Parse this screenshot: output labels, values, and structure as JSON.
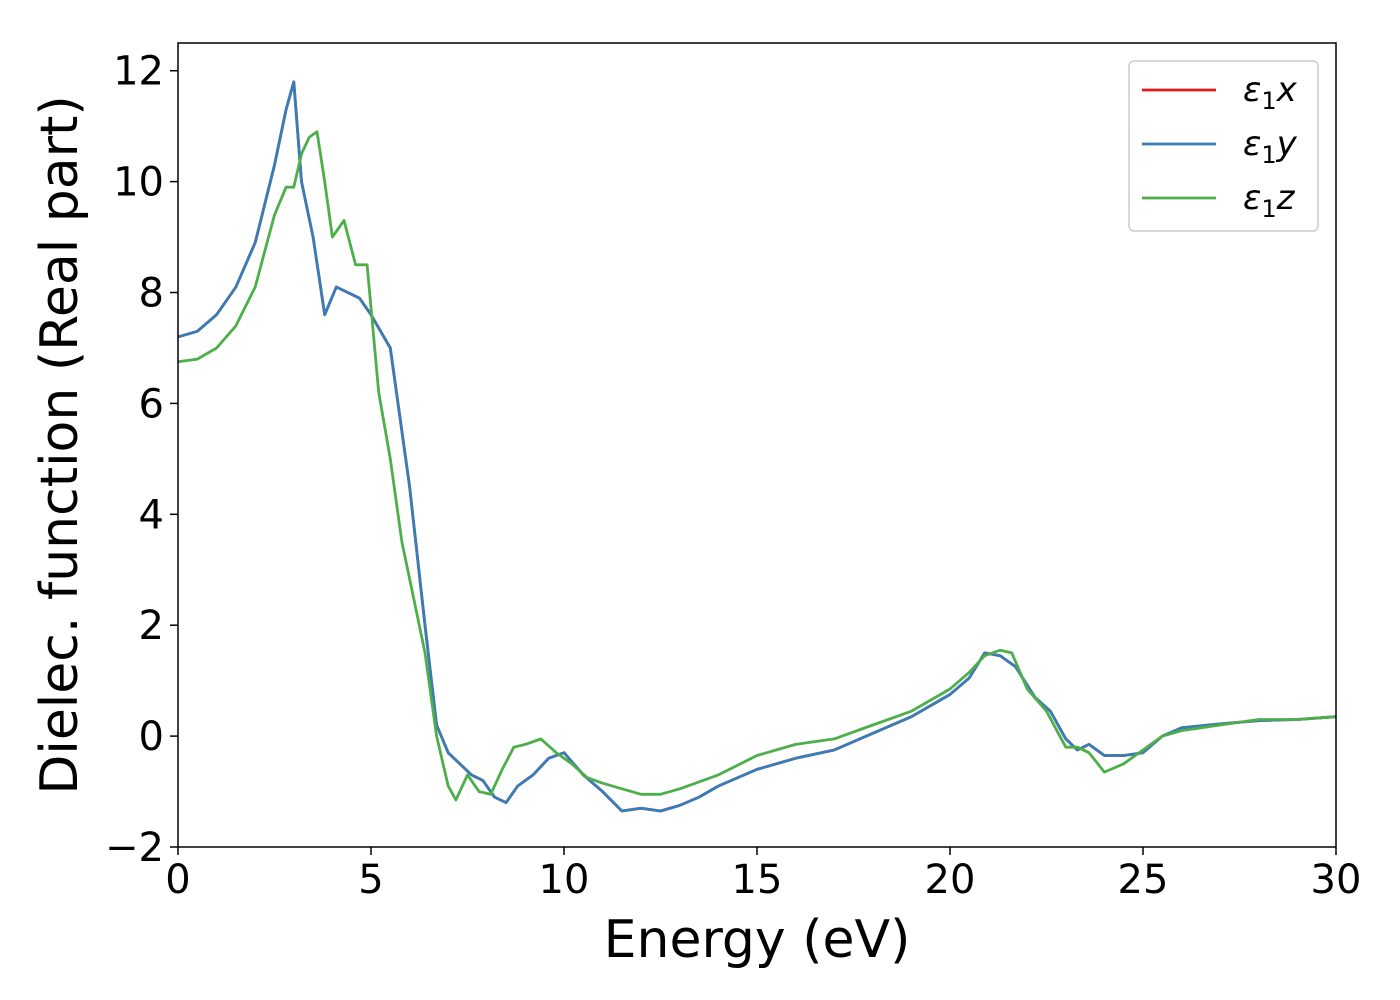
{
  "colors": {
    "background": "#ffffff",
    "axis": "#000000",
    "legend_border": "#cccccc"
  },
  "chart_data": {
    "type": "line",
    "xlabel": "Energy (eV)",
    "ylabel": "Dielec. function (Real part)",
    "xlim": [
      0,
      30
    ],
    "ylim": [
      -2,
      12.5
    ],
    "xticks": [
      0,
      5,
      10,
      15,
      20,
      25,
      30
    ],
    "yticks": [
      -2,
      0,
      2,
      4,
      6,
      8,
      10,
      12
    ],
    "xtick_labels": [
      "0",
      "5",
      "10",
      "15",
      "20",
      "25",
      "30"
    ],
    "ytick_labels": [
      "−2",
      "0",
      "2",
      "4",
      "6",
      "8",
      "10",
      "12"
    ],
    "grid": false,
    "legend_position": "top-right",
    "series": [
      {
        "name": "ε₁x",
        "label_main": "ε",
        "label_sub": "1",
        "label_tail": "x",
        "color": "#e41a1c",
        "x": [
          0,
          0.5,
          1.0,
          1.5,
          2.0,
          2.5,
          2.8,
          3.0,
          3.2,
          3.5,
          3.8,
          4.1,
          4.4,
          4.7,
          5.0,
          5.5,
          6.0,
          6.4,
          6.7,
          7.0,
          7.3,
          7.6,
          7.9,
          8.2,
          8.5,
          8.8,
          9.2,
          9.6,
          10.0,
          10.5,
          11.0,
          11.5,
          12.0,
          12.5,
          13.0,
          13.5,
          14.0,
          15.0,
          16.0,
          17.0,
          18.0,
          19.0,
          20.0,
          20.5,
          20.9,
          21.3,
          21.7,
          22.2,
          22.6,
          23.0,
          23.3,
          23.6,
          24.0,
          24.5,
          25.0,
          25.5,
          26.0,
          27.0,
          28.0,
          29.0,
          30.0
        ],
        "values": [
          7.2,
          7.3,
          7.6,
          8.1,
          8.9,
          10.3,
          11.3,
          11.8,
          10.0,
          9.0,
          7.6,
          8.1,
          8.0,
          7.9,
          7.6,
          7.0,
          4.5,
          2.0,
          0.2,
          -0.3,
          -0.5,
          -0.7,
          -0.8,
          -1.1,
          -1.2,
          -0.9,
          -0.7,
          -0.4,
          -0.3,
          -0.7,
          -1.0,
          -1.35,
          -1.3,
          -1.35,
          -1.25,
          -1.1,
          -0.9,
          -0.6,
          -0.4,
          -0.25,
          0.05,
          0.35,
          0.75,
          1.05,
          1.5,
          1.45,
          1.25,
          0.7,
          0.45,
          -0.05,
          -0.25,
          -0.15,
          -0.35,
          -0.35,
          -0.3,
          0.0,
          0.15,
          0.22,
          0.28,
          0.3,
          0.35
        ]
      },
      {
        "name": "ε₁y",
        "label_main": "ε",
        "label_sub": "1",
        "label_tail": "y",
        "color": "#377eb8",
        "x": [
          0,
          0.5,
          1.0,
          1.5,
          2.0,
          2.5,
          2.8,
          3.0,
          3.2,
          3.5,
          3.8,
          4.1,
          4.4,
          4.7,
          5.0,
          5.5,
          6.0,
          6.4,
          6.7,
          7.0,
          7.3,
          7.6,
          7.9,
          8.2,
          8.5,
          8.8,
          9.2,
          9.6,
          10.0,
          10.5,
          11.0,
          11.5,
          12.0,
          12.5,
          13.0,
          13.5,
          14.0,
          15.0,
          16.0,
          17.0,
          18.0,
          19.0,
          20.0,
          20.5,
          20.9,
          21.3,
          21.7,
          22.2,
          22.6,
          23.0,
          23.3,
          23.6,
          24.0,
          24.5,
          25.0,
          25.5,
          26.0,
          27.0,
          28.0,
          29.0,
          30.0
        ],
        "values": [
          7.2,
          7.3,
          7.6,
          8.1,
          8.9,
          10.3,
          11.3,
          11.8,
          10.0,
          9.0,
          7.6,
          8.1,
          8.0,
          7.9,
          7.6,
          7.0,
          4.5,
          2.0,
          0.2,
          -0.3,
          -0.5,
          -0.7,
          -0.8,
          -1.1,
          -1.2,
          -0.9,
          -0.7,
          -0.4,
          -0.3,
          -0.7,
          -1.0,
          -1.35,
          -1.3,
          -1.35,
          -1.25,
          -1.1,
          -0.9,
          -0.6,
          -0.4,
          -0.25,
          0.05,
          0.35,
          0.75,
          1.05,
          1.5,
          1.45,
          1.25,
          0.7,
          0.45,
          -0.05,
          -0.25,
          -0.15,
          -0.35,
          -0.35,
          -0.3,
          0.0,
          0.15,
          0.22,
          0.28,
          0.3,
          0.35
        ]
      },
      {
        "name": "ε₁z",
        "label_main": "ε",
        "label_sub": "1",
        "label_tail": "z",
        "color": "#4daf4a",
        "x": [
          0,
          0.5,
          1.0,
          1.5,
          2.0,
          2.5,
          2.8,
          3.0,
          3.2,
          3.4,
          3.6,
          3.8,
          4.0,
          4.3,
          4.6,
          4.9,
          5.2,
          5.5,
          5.8,
          6.1,
          6.4,
          6.7,
          7.0,
          7.2,
          7.5,
          7.8,
          8.1,
          8.4,
          8.7,
          9.0,
          9.4,
          9.8,
          10.2,
          10.6,
          11.0,
          11.5,
          12.0,
          12.5,
          13.0,
          14.0,
          15.0,
          16.0,
          17.0,
          18.0,
          19.0,
          20.0,
          20.5,
          20.9,
          21.3,
          21.6,
          22.0,
          22.5,
          23.0,
          23.3,
          23.6,
          24.0,
          24.5,
          25.0,
          25.5,
          26.0,
          27.0,
          28.0,
          29.0,
          30.0
        ],
        "values": [
          6.75,
          6.8,
          7.0,
          7.4,
          8.1,
          9.4,
          9.9,
          9.9,
          10.5,
          10.8,
          10.9,
          10.0,
          9.0,
          9.3,
          8.5,
          8.5,
          6.2,
          5.0,
          3.5,
          2.5,
          1.5,
          0.0,
          -0.9,
          -1.15,
          -0.7,
          -1.0,
          -1.05,
          -0.6,
          -0.2,
          -0.15,
          -0.05,
          -0.3,
          -0.5,
          -0.75,
          -0.85,
          -0.95,
          -1.05,
          -1.05,
          -0.95,
          -0.7,
          -0.35,
          -0.15,
          -0.05,
          0.2,
          0.45,
          0.85,
          1.15,
          1.45,
          1.55,
          1.5,
          0.85,
          0.45,
          -0.2,
          -0.2,
          -0.3,
          -0.65,
          -0.5,
          -0.25,
          0.0,
          0.1,
          0.2,
          0.3,
          0.3,
          0.35
        ]
      }
    ]
  }
}
